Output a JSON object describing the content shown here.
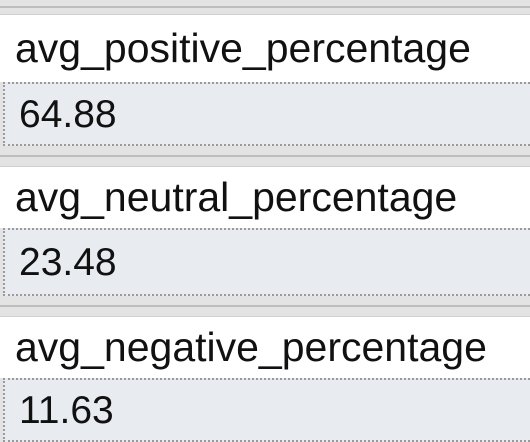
{
  "fields": [
    {
      "label": "avg_positive_percentage",
      "value": "64.88"
    },
    {
      "label": "avg_neutral_percentage",
      "value": "23.48"
    },
    {
      "label": "avg_negative_percentage",
      "value": "11.63"
    }
  ]
}
